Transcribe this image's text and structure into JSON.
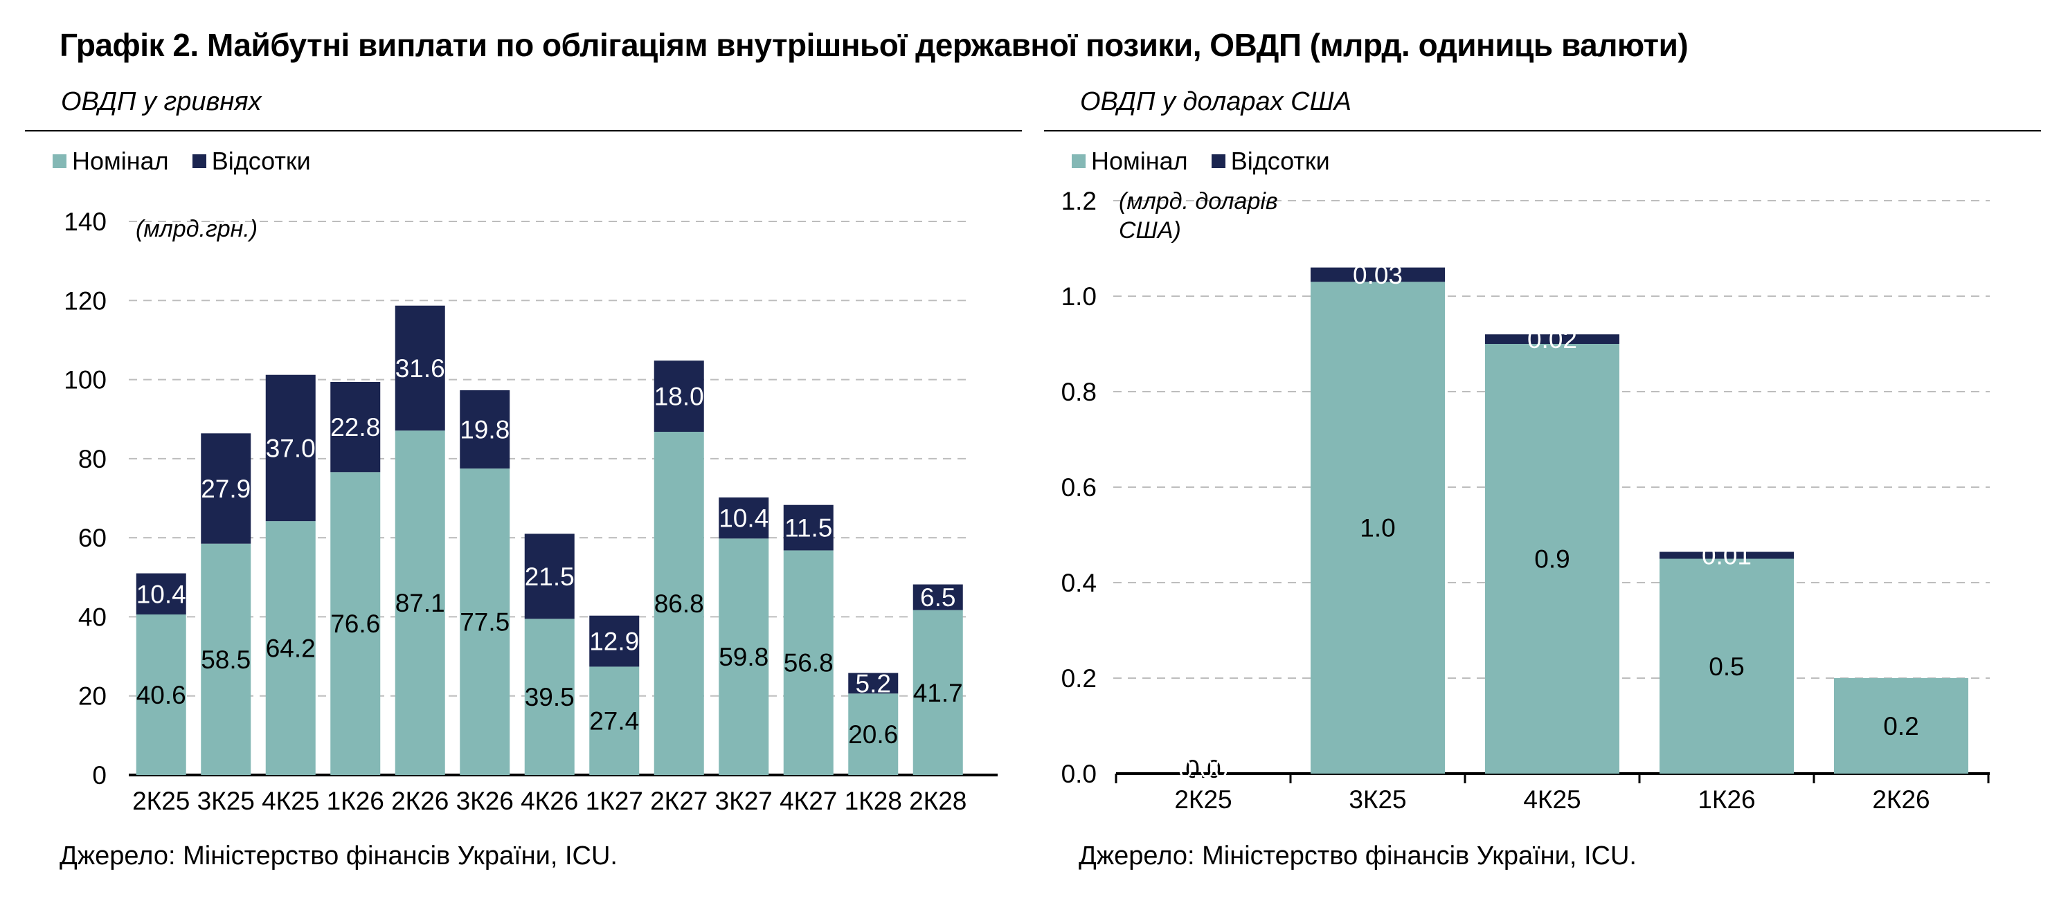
{
  "title": "Графік 2. Майбутні виплати по облігаціям внутрішньої державної позики, ОВДП (млрд. одиниць валюти)",
  "colors": {
    "nominal": "#84b8b5",
    "interest": "#1b2550",
    "grid": "#bdbdbd"
  },
  "left": {
    "subtitle": "ОВДП у гривнях",
    "legend": [
      "Номінал",
      "Відсотки"
    ],
    "source": "Джерело: Міністерство фінансів України, ICU.",
    "unit_note": "(млрд.грн.)"
  },
  "right": {
    "subtitle": "ОВДП у доларах США",
    "legend": [
      "Номінал",
      "Відсотки"
    ],
    "source": "Джерело: Міністерство фінансів України, ICU.",
    "unit_note_line1": "(млрд. доларів",
    "unit_note_line2": "США)"
  },
  "chart_data": [
    {
      "type": "bar",
      "stacked": true,
      "categories": [
        "2К25",
        "3К25",
        "4К25",
        "1К26",
        "2К26",
        "3К26",
        "4К26",
        "1К27",
        "2К27",
        "3К27",
        "4К27",
        "1К28",
        "2К28"
      ],
      "series": [
        {
          "name": "Номінал",
          "values": [
            40.6,
            58.5,
            64.2,
            76.6,
            87.1,
            77.5,
            39.5,
            27.4,
            86.8,
            59.8,
            56.8,
            20.6,
            41.7
          ],
          "labels": [
            "40.6",
            "58.5",
            "64.2",
            "76.6",
            "87.1",
            "77.5",
            "39.5",
            "27.4",
            "86.8",
            "59.8",
            "56.8",
            "20.6",
            "41.7"
          ]
        },
        {
          "name": "Відсотки",
          "values": [
            10.4,
            27.9,
            37.0,
            22.8,
            31.6,
            19.8,
            21.5,
            12.9,
            18.0,
            10.4,
            11.5,
            5.2,
            6.5
          ],
          "labels": [
            "10.4",
            "27.9",
            "37.0",
            "22.8",
            "31.6",
            "19.8",
            "21.5",
            "12.9",
            "18.0",
            "10.4",
            "11.5",
            "5.2",
            "6.5"
          ]
        }
      ],
      "ylim": [
        0,
        140
      ],
      "yticks": [
        0,
        20,
        40,
        60,
        80,
        100,
        120,
        140
      ],
      "ytick_labels": [
        "0",
        "20",
        "40",
        "60",
        "80",
        "100",
        "120",
        "140"
      ],
      "grid": true,
      "legend_position": "top-left"
    },
    {
      "type": "bar",
      "stacked": true,
      "categories": [
        "2К25",
        "3К25",
        "4К25",
        "1К26",
        "2К26"
      ],
      "series": [
        {
          "name": "Номінал",
          "values": [
            0.0,
            1.03,
            0.9,
            0.45,
            0.2
          ],
          "labels": [
            "0.0",
            "1.0",
            "0.9",
            "0.5",
            "0.2"
          ]
        },
        {
          "name": "Відсотки",
          "values": [
            0.0,
            0.03,
            0.02,
            0.01,
            0.0
          ],
          "labels": [
            "0.00",
            "0.03",
            "0.02",
            "0.01",
            ""
          ]
        }
      ],
      "ylim": [
        0,
        1.2
      ],
      "yticks": [
        0,
        0.2,
        0.4,
        0.6,
        0.8,
        1.0,
        1.2
      ],
      "ytick_labels": [
        "0.0",
        "0.2",
        "0.4",
        "0.6",
        "0.8",
        "1.0",
        "1.2"
      ],
      "grid": true,
      "legend_position": "top-left"
    }
  ]
}
